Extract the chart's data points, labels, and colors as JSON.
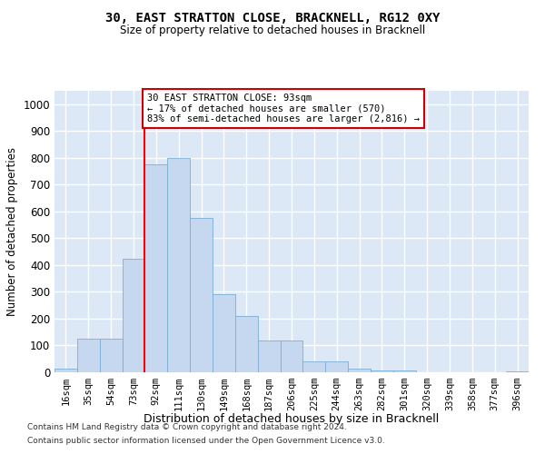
{
  "title": "30, EAST STRATTON CLOSE, BRACKNELL, RG12 0XY",
  "subtitle": "Size of property relative to detached houses in Bracknell",
  "xlabel": "Distribution of detached houses by size in Bracknell",
  "ylabel": "Number of detached properties",
  "categories": [
    "16sqm",
    "35sqm",
    "54sqm",
    "73sqm",
    "92sqm",
    "111sqm",
    "130sqm",
    "149sqm",
    "168sqm",
    "187sqm",
    "206sqm",
    "225sqm",
    "244sqm",
    "263sqm",
    "282sqm",
    "301sqm",
    "320sqm",
    "339sqm",
    "358sqm",
    "377sqm",
    "396sqm"
  ],
  "values": [
    15,
    125,
    125,
    425,
    775,
    800,
    575,
    290,
    210,
    120,
    120,
    40,
    40,
    12,
    8,
    8,
    0,
    0,
    0,
    0,
    5
  ],
  "bar_color": "#c5d8f0",
  "bar_edge_color": "#7aafd4",
  "red_line_index": 4,
  "annotation_text": "30 EAST STRATTON CLOSE: 93sqm\n← 17% of detached houses are smaller (570)\n83% of semi-detached houses are larger (2,816) →",
  "annotation_box_color": "#ffffff",
  "annotation_box_edge": "#cc0000",
  "ylim": [
    0,
    1050
  ],
  "yticks": [
    0,
    100,
    200,
    300,
    400,
    500,
    600,
    700,
    800,
    900,
    1000
  ],
  "bg_color": "#dce8f5",
  "grid_color": "#ffffff",
  "footer_line1": "Contains HM Land Registry data © Crown copyright and database right 2024.",
  "footer_line2": "Contains public sector information licensed under the Open Government Licence v3.0."
}
